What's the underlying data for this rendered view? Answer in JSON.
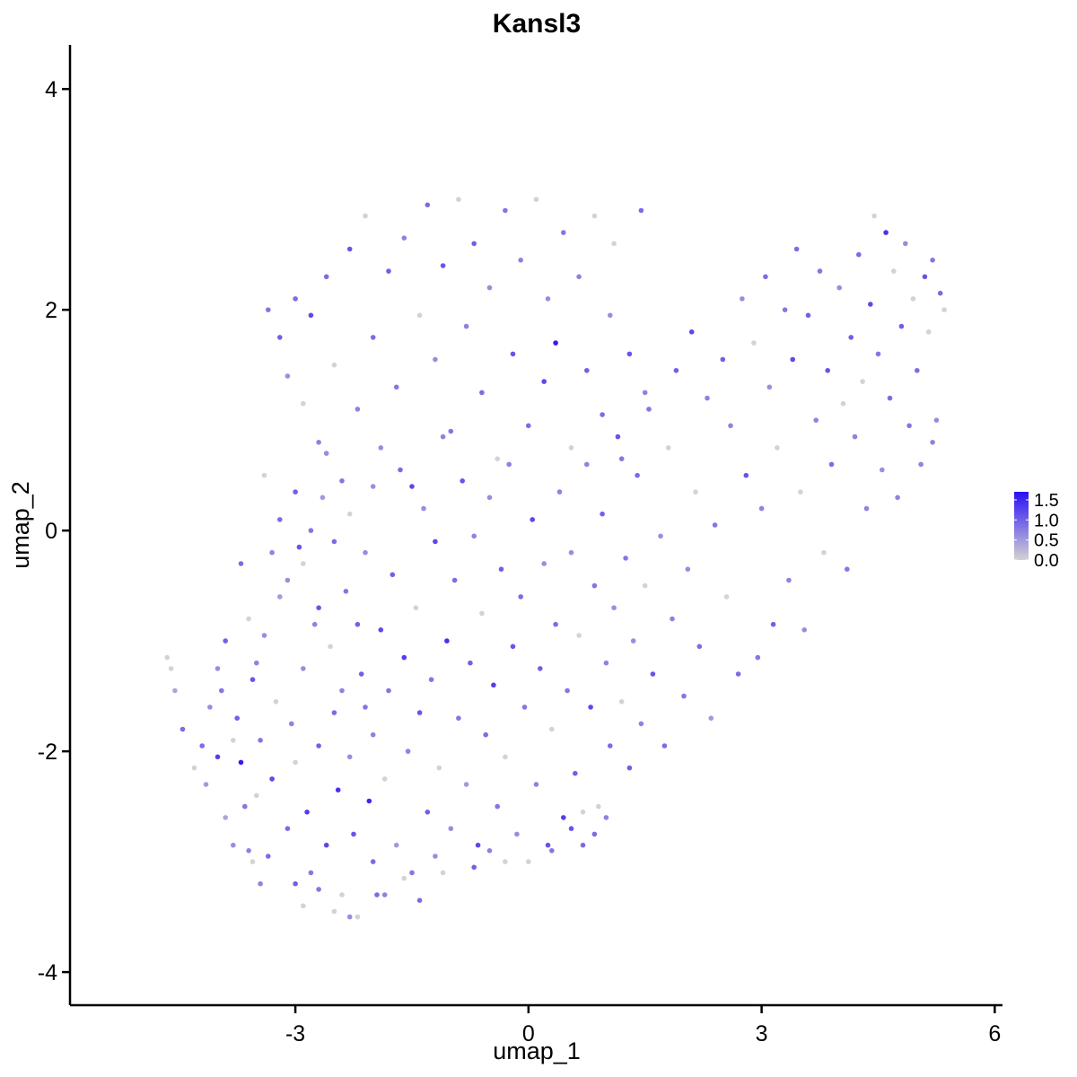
{
  "chart_data": {
    "type": "scatter",
    "title": "Kansl3",
    "xlabel": "umap_1",
    "ylabel": "umap_2",
    "xlim": [
      -5.9,
      6.1
    ],
    "ylim": [
      -4.3,
      4.4
    ],
    "x_ticks": [
      -3,
      0,
      3,
      6
    ],
    "x_tick_labels": [
      "-3",
      "0",
      "3",
      "6"
    ],
    "y_ticks": [
      -4,
      -2,
      0,
      2,
      4
    ],
    "y_tick_labels": [
      "-4",
      "-2",
      "0",
      "2",
      "4"
    ],
    "grid": false,
    "legend": {
      "placement": "right",
      "type": "colorbar",
      "ticks": [
        0.0,
        0.5,
        1.0,
        1.5
      ],
      "tick_labels": [
        "0.0",
        "0.5",
        "1.0",
        "1.5"
      ],
      "range": [
        0,
        1.7
      ],
      "color_low": "#d3d3d3",
      "color_high": "#2a10f5"
    },
    "points": [
      [
        -4.65,
        -1.15,
        0.0
      ],
      [
        -4.6,
        -1.25,
        0.0
      ],
      [
        -4.55,
        -1.45,
        0.4
      ],
      [
        -4.45,
        -1.8,
        0.9
      ],
      [
        -4.3,
        -2.15,
        0.0
      ],
      [
        -4.2,
        -1.95,
        0.9
      ],
      [
        -4.15,
        -2.3,
        0.5
      ],
      [
        -4.1,
        -1.6,
        0.6
      ],
      [
        -4.0,
        -2.05,
        1.3
      ],
      [
        -3.95,
        -1.45,
        0.8
      ],
      [
        -3.9,
        -2.6,
        0.4
      ],
      [
        -3.8,
        -2.85,
        0.6
      ],
      [
        -3.75,
        -1.7,
        1.0
      ],
      [
        -3.7,
        -2.1,
        1.6
      ],
      [
        -3.6,
        -2.9,
        0.7
      ],
      [
        -3.55,
        -1.35,
        1.1
      ],
      [
        -3.5,
        -2.4,
        0.0
      ],
      [
        -3.45,
        -1.9,
        0.8
      ],
      [
        -3.4,
        -0.95,
        0.6
      ],
      [
        -3.35,
        -2.95,
        0.9
      ],
      [
        -3.3,
        -2.25,
        1.2
      ],
      [
        -3.25,
        -1.55,
        0.0
      ],
      [
        -3.2,
        -0.6,
        0.5
      ],
      [
        -3.1,
        -2.7,
        0.9
      ],
      [
        -3.05,
        -1.75,
        0.7
      ],
      [
        -3.0,
        -2.1,
        0.0
      ],
      [
        -2.95,
        -0.15,
        1.1
      ],
      [
        -2.9,
        -1.25,
        0.6
      ],
      [
        -2.85,
        -2.55,
        1.3
      ],
      [
        -2.8,
        -3.1,
        0.8
      ],
      [
        -2.75,
        -0.85,
        0.7
      ],
      [
        -2.7,
        -1.95,
        1.0
      ],
      [
        -2.65,
        0.3,
        0.5
      ],
      [
        -2.6,
        -2.85,
        1.2
      ],
      [
        -2.55,
        -1.05,
        0.0
      ],
      [
        -2.5,
        -1.65,
        0.9
      ],
      [
        -2.45,
        -2.35,
        1.4
      ],
      [
        -2.4,
        -3.3,
        0.0
      ],
      [
        -2.35,
        -0.55,
        0.8
      ],
      [
        -2.3,
        -2.05,
        0.6
      ],
      [
        -2.25,
        -2.75,
        1.1
      ],
      [
        -2.2,
        -3.5,
        0.0
      ],
      [
        -2.15,
        -1.3,
        1.0
      ],
      [
        -2.1,
        -0.2,
        0.6
      ],
      [
        -2.05,
        -2.45,
        1.5
      ],
      [
        -2.0,
        -1.85,
        0.7
      ],
      [
        -1.95,
        -3.3,
        0.9
      ],
      [
        -1.9,
        -0.9,
        1.2
      ],
      [
        -1.85,
        -2.25,
        0.0
      ],
      [
        -1.8,
        -1.45,
        0.8
      ],
      [
        -1.75,
        -0.4,
        1.0
      ],
      [
        -1.7,
        -2.85,
        0.5
      ],
      [
        -1.65,
        0.55,
        0.9
      ],
      [
        -1.6,
        -1.15,
        1.3
      ],
      [
        -1.55,
        -2.0,
        0.7
      ],
      [
        -1.5,
        -3.1,
        0.8
      ],
      [
        -1.45,
        -0.7,
        0.0
      ],
      [
        -1.4,
        -1.65,
        1.1
      ],
      [
        -1.35,
        0.2,
        0.6
      ],
      [
        -1.3,
        -2.55,
        1.0
      ],
      [
        -1.25,
        -1.35,
        0.8
      ],
      [
        -1.2,
        -0.1,
        1.2
      ],
      [
        -1.15,
        -2.15,
        0.0
      ],
      [
        -1.1,
        0.85,
        0.7
      ],
      [
        -1.05,
        -1.0,
        1.4
      ],
      [
        -1.0,
        -2.7,
        0.6
      ],
      [
        -0.95,
        -0.45,
        0.9
      ],
      [
        -0.9,
        -1.7,
        0.8
      ],
      [
        -0.85,
        0.45,
        1.1
      ],
      [
        -0.8,
        -2.3,
        0.5
      ],
      [
        -0.75,
        -1.2,
        1.0
      ],
      [
        -0.7,
        -0.05,
        0.7
      ],
      [
        -0.65,
        -2.85,
        1.2
      ],
      [
        -0.6,
        -0.75,
        0.0
      ],
      [
        -0.55,
        -1.85,
        0.9
      ],
      [
        -0.5,
        0.3,
        0.6
      ],
      [
        -0.45,
        -1.4,
        1.3
      ],
      [
        -0.4,
        -2.5,
        0.8
      ],
      [
        -0.35,
        -0.35,
        1.0
      ],
      [
        -0.3,
        -2.05,
        0.0
      ],
      [
        -0.25,
        0.6,
        0.7
      ],
      [
        -0.2,
        -1.05,
        1.1
      ],
      [
        -0.15,
        -2.75,
        0.6
      ],
      [
        -0.1,
        -0.6,
        0.9
      ],
      [
        -0.05,
        -1.6,
        0.8
      ],
      [
        0.0,
        -3.0,
        0.0
      ],
      [
        0.05,
        0.1,
        1.2
      ],
      [
        0.1,
        -2.3,
        0.7
      ],
      [
        0.15,
        -1.25,
        1.0
      ],
      [
        0.2,
        -0.3,
        0.6
      ],
      [
        0.25,
        -2.85,
        1.1
      ],
      [
        0.3,
        -1.8,
        0.0
      ],
      [
        0.35,
        -0.85,
        0.9
      ],
      [
        0.4,
        0.35,
        0.7
      ],
      [
        0.45,
        -2.6,
        1.3
      ],
      [
        0.5,
        -1.45,
        0.8
      ],
      [
        0.55,
        -0.2,
        0.6
      ],
      [
        0.6,
        -2.2,
        1.0
      ],
      [
        0.65,
        -0.95,
        0.0
      ],
      [
        0.7,
        -2.85,
        0.9
      ],
      [
        0.75,
        0.6,
        0.7
      ],
      [
        0.8,
        -1.6,
        1.2
      ],
      [
        0.85,
        -0.5,
        0.8
      ],
      [
        0.9,
        -2.5,
        0.0
      ],
      [
        0.95,
        0.15,
        1.0
      ],
      [
        1.0,
        -1.2,
        0.7
      ],
      [
        1.05,
        -1.95,
        0.9
      ],
      [
        1.1,
        -0.7,
        0.6
      ],
      [
        1.15,
        0.85,
        1.1
      ],
      [
        1.2,
        -1.55,
        0.0
      ],
      [
        1.25,
        -0.25,
        0.8
      ],
      [
        1.3,
        -2.15,
        1.0
      ],
      [
        1.35,
        -1.0,
        0.6
      ],
      [
        1.4,
        0.5,
        0.9
      ],
      [
        1.45,
        -1.75,
        0.7
      ],
      [
        1.5,
        -0.5,
        0.0
      ],
      [
        1.55,
        1.1,
        0.8
      ],
      [
        1.6,
        -1.3,
        1.1
      ],
      [
        1.7,
        -0.05,
        0.6
      ],
      [
        1.75,
        -1.95,
        0.9
      ],
      [
        1.8,
        0.75,
        0.0
      ],
      [
        1.85,
        -0.8,
        0.7
      ],
      [
        1.9,
        1.45,
        1.0
      ],
      [
        2.0,
        -1.5,
        0.8
      ],
      [
        2.05,
        -0.35,
        0.6
      ],
      [
        2.1,
        1.8,
        1.2
      ],
      [
        2.15,
        0.35,
        0.0
      ],
      [
        2.2,
        -1.05,
        0.9
      ],
      [
        2.3,
        1.2,
        0.7
      ],
      [
        2.35,
        -1.7,
        0.5
      ],
      [
        2.4,
        0.05,
        0.8
      ],
      [
        2.5,
        1.55,
        1.0
      ],
      [
        2.55,
        -0.6,
        0.0
      ],
      [
        2.6,
        0.95,
        0.7
      ],
      [
        2.7,
        -1.3,
        0.9
      ],
      [
        2.75,
        2.1,
        0.6
      ],
      [
        2.8,
        0.5,
        1.1
      ],
      [
        2.9,
        1.7,
        0.0
      ],
      [
        2.95,
        -1.15,
        0.8
      ],
      [
        3.0,
        0.2,
        0.7
      ],
      [
        3.05,
        2.3,
        0.9
      ],
      [
        3.1,
        1.3,
        0.6
      ],
      [
        3.15,
        -0.85,
        1.0
      ],
      [
        3.2,
        0.75,
        0.0
      ],
      [
        3.3,
        2.0,
        0.8
      ],
      [
        3.35,
        -0.45,
        0.7
      ],
      [
        3.4,
        1.55,
        1.2
      ],
      [
        3.45,
        2.55,
        0.9
      ],
      [
        3.5,
        0.35,
        0.0
      ],
      [
        3.55,
        -0.9,
        0.6
      ],
      [
        3.6,
        1.95,
        1.0
      ],
      [
        3.7,
        1.0,
        0.7
      ],
      [
        3.75,
        2.35,
        0.8
      ],
      [
        3.8,
        -0.2,
        0.0
      ],
      [
        3.85,
        1.45,
        1.1
      ],
      [
        3.9,
        0.6,
        0.9
      ],
      [
        4.0,
        2.2,
        0.6
      ],
      [
        4.05,
        1.15,
        0.0
      ],
      [
        4.1,
        -0.35,
        0.8
      ],
      [
        4.15,
        1.75,
        1.0
      ],
      [
        4.2,
        0.85,
        0.7
      ],
      [
        4.25,
        2.5,
        0.9
      ],
      [
        4.3,
        1.35,
        0.0
      ],
      [
        4.35,
        0.2,
        0.7
      ],
      [
        4.4,
        2.05,
        1.2
      ],
      [
        4.45,
        2.85,
        0.0
      ],
      [
        4.5,
        1.6,
        0.8
      ],
      [
        4.55,
        0.55,
        0.6
      ],
      [
        4.6,
        2.7,
        1.4
      ],
      [
        4.65,
        1.2,
        0.9
      ],
      [
        4.7,
        2.35,
        0.0
      ],
      [
        4.75,
        0.3,
        0.7
      ],
      [
        4.8,
        1.85,
        1.0
      ],
      [
        4.85,
        2.6,
        0.6
      ],
      [
        4.9,
        0.95,
        0.8
      ],
      [
        4.95,
        2.1,
        0.0
      ],
      [
        5.0,
        1.45,
        0.9
      ],
      [
        5.05,
        0.6,
        0.7
      ],
      [
        5.1,
        2.3,
        1.1
      ],
      [
        5.15,
        1.8,
        0.0
      ],
      [
        5.2,
        2.45,
        0.8
      ],
      [
        5.25,
        1.0,
        0.6
      ],
      [
        5.3,
        2.15,
        0.9
      ],
      [
        5.35,
        2.0,
        0.0
      ],
      [
        5.2,
        0.8,
        0.7
      ],
      [
        -3.35,
        2.0,
        0.8
      ],
      [
        -3.2,
        1.75,
        1.0
      ],
      [
        -3.1,
        1.4,
        0.6
      ],
      [
        -3.0,
        2.1,
        0.9
      ],
      [
        -2.9,
        1.15,
        0.0
      ],
      [
        -2.8,
        1.95,
        1.2
      ],
      [
        -2.7,
        0.8,
        0.7
      ],
      [
        -2.6,
        2.3,
        0.9
      ],
      [
        -2.5,
        1.5,
        0.0
      ],
      [
        -2.4,
        0.45,
        0.8
      ],
      [
        -2.3,
        2.55,
        1.1
      ],
      [
        -2.2,
        1.1,
        0.7
      ],
      [
        -2.1,
        2.85,
        0.0
      ],
      [
        -2.0,
        1.75,
        0.9
      ],
      [
        -1.9,
        0.75,
        0.6
      ],
      [
        -1.8,
        2.35,
        1.0
      ],
      [
        -1.7,
        1.3,
        0.8
      ],
      [
        -1.6,
        2.65,
        0.7
      ],
      [
        -1.5,
        0.4,
        1.2
      ],
      [
        -1.4,
        1.95,
        0.0
      ],
      [
        -1.3,
        2.95,
        0.9
      ],
      [
        -1.2,
        1.55,
        0.6
      ],
      [
        -1.1,
        2.4,
        1.1
      ],
      [
        -1.0,
        0.9,
        0.8
      ],
      [
        -0.9,
        3.0,
        0.0
      ],
      [
        -0.8,
        1.85,
        0.7
      ],
      [
        -0.7,
        2.6,
        1.0
      ],
      [
        -0.6,
        1.25,
        0.9
      ],
      [
        -0.5,
        2.2,
        0.6
      ],
      [
        -0.4,
        0.65,
        0.0
      ],
      [
        -0.3,
        2.9,
        0.8
      ],
      [
        -0.2,
        1.6,
        1.1
      ],
      [
        -0.1,
        2.45,
        0.7
      ],
      [
        0.0,
        0.95,
        0.9
      ],
      [
        0.1,
        3.0,
        0.0
      ],
      [
        0.2,
        1.35,
        1.2
      ],
      [
        0.25,
        2.1,
        0.6
      ],
      [
        0.35,
        1.7,
        1.6
      ],
      [
        0.45,
        2.7,
        0.8
      ],
      [
        0.55,
        0.75,
        0.0
      ],
      [
        0.65,
        2.3,
        0.7
      ],
      [
        0.75,
        1.45,
        1.0
      ],
      [
        0.85,
        2.85,
        0.0
      ],
      [
        0.95,
        1.05,
        0.9
      ],
      [
        1.05,
        1.95,
        0.6
      ],
      [
        1.1,
        2.6,
        0.0
      ],
      [
        1.2,
        0.65,
        0.8
      ],
      [
        1.3,
        1.6,
        1.1
      ],
      [
        1.45,
        2.9,
        0.9
      ],
      [
        1.5,
        1.25,
        0.7
      ],
      [
        -3.4,
        0.5,
        0.0
      ],
      [
        -3.3,
        -0.2,
        0.7
      ],
      [
        -3.2,
        0.1,
        0.9
      ],
      [
        -3.1,
        -0.45,
        0.6
      ],
      [
        -3.0,
        0.35,
        1.0
      ],
      [
        -2.9,
        -0.3,
        0.0
      ],
      [
        -2.8,
        0.0,
        0.8
      ],
      [
        -2.7,
        -0.7,
        1.1
      ],
      [
        -2.6,
        0.7,
        0.6
      ],
      [
        -2.5,
        -0.1,
        0.9
      ],
      [
        -2.4,
        -1.45,
        0.7
      ],
      [
        -2.3,
        0.15,
        0.0
      ],
      [
        -2.2,
        -0.85,
        1.0
      ],
      [
        -2.1,
        -1.6,
        0.8
      ],
      [
        -2.0,
        0.4,
        0.6
      ],
      [
        -3.7,
        -0.3,
        0.9
      ],
      [
        -3.6,
        -0.8,
        0.0
      ],
      [
        -3.5,
        -1.2,
        0.7
      ],
      [
        -3.9,
        -1.0,
        1.0
      ],
      [
        -4.0,
        -1.25,
        0.6
      ],
      [
        -3.8,
        -1.9,
        0.0
      ],
      [
        -3.65,
        -2.5,
        0.8
      ],
      [
        -3.55,
        -3.0,
        0.0
      ],
      [
        -3.45,
        -3.2,
        0.7
      ],
      [
        -3.0,
        -3.2,
        1.0
      ],
      [
        -2.9,
        -3.4,
        0.0
      ],
      [
        -2.7,
        -3.25,
        0.8
      ],
      [
        -2.5,
        -3.45,
        0.0
      ],
      [
        -2.3,
        -3.5,
        0.6
      ],
      [
        -2.0,
        -3.0,
        0.9
      ],
      [
        -1.85,
        -3.3,
        0.7
      ],
      [
        -1.6,
        -3.15,
        0.0
      ],
      [
        -1.4,
        -3.35,
        0.9
      ],
      [
        -1.2,
        -2.95,
        0.6
      ],
      [
        -1.1,
        -3.1,
        0.0
      ],
      [
        -0.7,
        -3.05,
        1.0
      ],
      [
        -0.5,
        -2.9,
        0.7
      ],
      [
        -0.3,
        -3.0,
        0.0
      ],
      [
        0.3,
        -2.9,
        0.8
      ],
      [
        0.55,
        -2.7,
        1.1
      ],
      [
        0.7,
        -2.55,
        0.0
      ],
      [
        0.85,
        -2.75,
        0.9
      ],
      [
        1.0,
        -2.6,
        0.7
      ]
    ]
  }
}
